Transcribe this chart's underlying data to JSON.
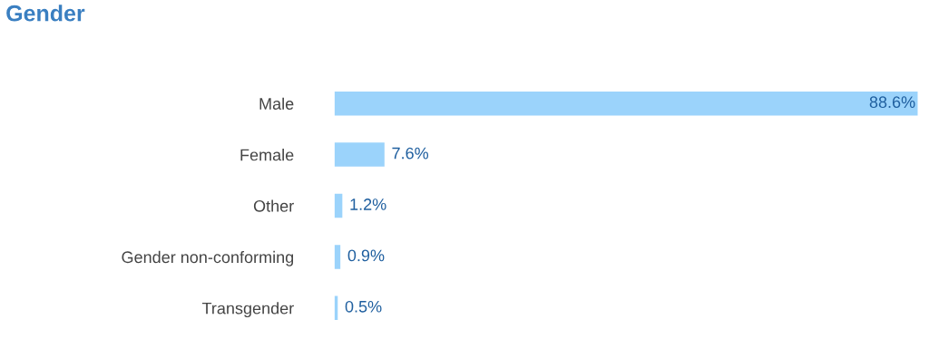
{
  "chart_data": {
    "type": "bar",
    "orientation": "horizontal",
    "title": "Gender",
    "categories": [
      "Male",
      "Female",
      "Other",
      "Gender non-conforming",
      "Transgender"
    ],
    "values": [
      88.6,
      7.6,
      1.2,
      0.9,
      0.5
    ],
    "value_labels": [
      "88.6%",
      "7.6%",
      "1.2%",
      "0.9%",
      "0.5%"
    ],
    "color": "#9bd3fb",
    "grid": false,
    "legend": false
  }
}
